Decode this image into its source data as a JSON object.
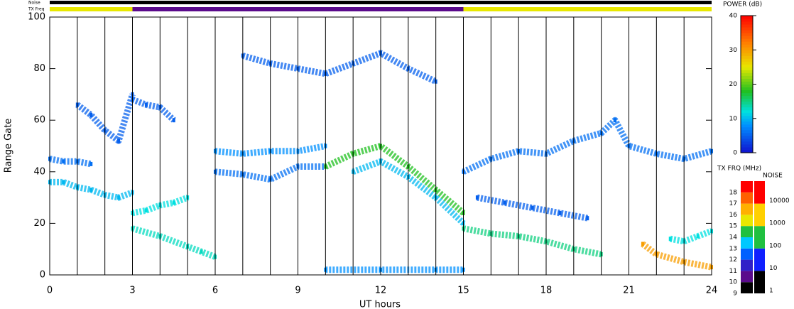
{
  "chart_data": {
    "type": "range-time",
    "xlabel": "UT hours",
    "ylabel": "Range Gate",
    "xlim": [
      0,
      24
    ],
    "xticks": [
      0,
      3,
      6,
      9,
      12,
      15,
      18,
      21,
      24
    ],
    "ylim": [
      0,
      100
    ],
    "yticks": [
      0,
      20,
      40,
      60,
      80,
      100
    ],
    "scan_boundaries": [
      1,
      2,
      3,
      4,
      5,
      6,
      7,
      8,
      9,
      10,
      11,
      12,
      13,
      14,
      15,
      16,
      17,
      18,
      19,
      20,
      21,
      22,
      23
    ],
    "noise_label": "Noise",
    "txfreq_label": "TX Freq",
    "noise_segments": [
      {
        "start": 0,
        "end": 24,
        "value": 1
      }
    ],
    "txfreq_segments": [
      {
        "start": 0,
        "end": 3,
        "value": 15
      },
      {
        "start": 3,
        "end": 15,
        "value": 10
      },
      {
        "start": 15,
        "end": 24,
        "value": 15
      }
    ],
    "power_title": "POWER (dB)",
    "power_lim": [
      0,
      40
    ],
    "power_ticks": [
      0,
      10,
      20,
      30,
      40
    ],
    "power_colormap": [
      [
        0,
        "#1010d0"
      ],
      [
        8,
        "#0090ff"
      ],
      [
        12,
        "#00e0e0"
      ],
      [
        18,
        "#20c020"
      ],
      [
        25,
        "#e8e800"
      ],
      [
        32,
        "#ff8000"
      ],
      [
        40,
        "#ff0000"
      ]
    ],
    "txfreq_title": "TX FRQ (MHz)",
    "txfreq_ticks": [
      9,
      10,
      11,
      12,
      13,
      14,
      15,
      16,
      17,
      18
    ],
    "txfreq_colors": [
      "#000000",
      "#5a0a8c",
      "#3020c8",
      "#0060ff",
      "#00c8ff",
      "#20c040",
      "#e8e800",
      "#ffb000",
      "#ff6000",
      "#ff0000"
    ],
    "noise_title": "NOISE",
    "noise_ticks": [
      1,
      10,
      100,
      1000,
      10000
    ],
    "noise_colors": [
      "#000000",
      "#1020ff",
      "#20c040",
      "#ffd000",
      "#ff0000"
    ],
    "series": [
      {
        "x": [
          0,
          0.5,
          1,
          1.5,
          2,
          2.5,
          3
        ],
        "y": [
          36,
          36,
          34,
          33,
          31,
          30,
          32
        ],
        "power": 10
      },
      {
        "x": [
          0,
          0.5,
          1,
          1.5
        ],
        "y": [
          45,
          44,
          44,
          43
        ],
        "power": 6
      },
      {
        "x": [
          1,
          1.5,
          2,
          2.5,
          3
        ],
        "y": [
          66,
          62,
          56,
          52,
          70
        ],
        "power": 5
      },
      {
        "x": [
          3,
          3.5,
          4,
          4.5,
          5
        ],
        "y": [
          24,
          25,
          27,
          28,
          30
        ],
        "power": 12
      },
      {
        "x": [
          3,
          4,
          5,
          5.5,
          6
        ],
        "y": [
          18,
          15,
          11,
          9,
          7
        ],
        "power": 13
      },
      {
        "x": [
          3,
          3.5,
          4,
          4.5
        ],
        "y": [
          68,
          66,
          65,
          60
        ],
        "power": 5
      },
      {
        "x": [
          6,
          7,
          8,
          9,
          10
        ],
        "y": [
          48,
          47,
          48,
          48,
          50
        ],
        "power": 8
      },
      {
        "x": [
          6,
          7,
          8,
          9,
          10
        ],
        "y": [
          40,
          39,
          37,
          42,
          42
        ],
        "power": 6
      },
      {
        "x": [
          7,
          8,
          9,
          10,
          11,
          12,
          13,
          14
        ],
        "y": [
          85,
          82,
          80,
          78,
          82,
          86,
          80,
          75
        ],
        "power": 5
      },
      {
        "x": [
          10,
          11,
          12,
          13,
          14,
          15
        ],
        "y": [
          42,
          47,
          50,
          42,
          33,
          24
        ],
        "power": 18
      },
      {
        "x": [
          11,
          12,
          13,
          14,
          15
        ],
        "y": [
          40,
          44,
          38,
          30,
          20
        ],
        "power": 10
      },
      {
        "x": [
          10,
          12,
          14,
          15
        ],
        "y": [
          2,
          2,
          2,
          2
        ],
        "power": 8
      },
      {
        "x": [
          15,
          16,
          17,
          18,
          19,
          20,
          20.5,
          21,
          22,
          23,
          24
        ],
        "y": [
          40,
          45,
          48,
          47,
          52,
          55,
          60,
          50,
          47,
          45,
          48
        ],
        "power": 6
      },
      {
        "x": [
          15,
          16,
          17,
          18,
          19,
          20
        ],
        "y": [
          18,
          16,
          15,
          13,
          10,
          8
        ],
        "power": 15
      },
      {
        "x": [
          15.5,
          16.5,
          17.5,
          18.5,
          19.5
        ],
        "y": [
          30,
          28,
          26,
          24,
          22
        ],
        "power": 5
      },
      {
        "x": [
          21.5,
          22,
          23,
          24
        ],
        "y": [
          12,
          8,
          5,
          3
        ],
        "power": 30
      },
      {
        "x": [
          22.5,
          23,
          23.5,
          24
        ],
        "y": [
          14,
          13,
          15,
          17
        ],
        "power": 12
      }
    ]
  }
}
